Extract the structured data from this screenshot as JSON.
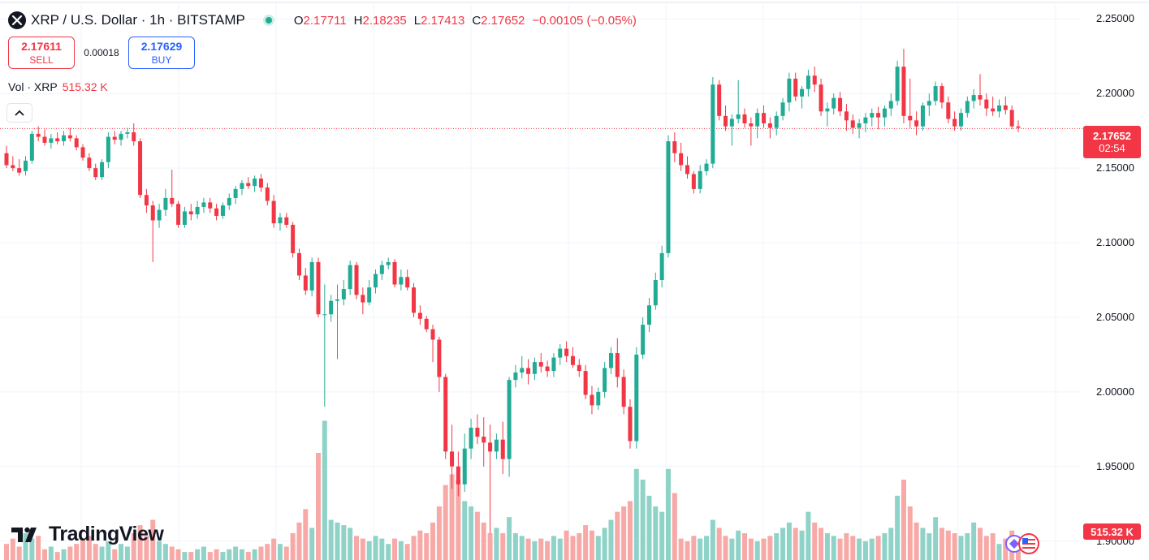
{
  "header": {
    "title": "XRP / U.S. Dollar · 1h · BITSTAMP",
    "symbol_icon": "xrp-logo-icon",
    "ohlc": [
      {
        "key": "O",
        "value": "2.17711"
      },
      {
        "key": "H",
        "value": "2.18235"
      },
      {
        "key": "L",
        "value": "2.17413"
      },
      {
        "key": "C",
        "value": "2.17652"
      }
    ],
    "change": "−0.00105 (−0.05%)"
  },
  "trade": {
    "sell_price": "2.17611",
    "sell_label": "SELL",
    "spread": "0.00018",
    "buy_price": "2.17629",
    "buy_label": "BUY"
  },
  "volume": {
    "label": "Vol · XRP",
    "value": "515.32 K"
  },
  "price_axis": {
    "labels": [
      "2.25000",
      "2.20000",
      "2.15000",
      "2.10000",
      "2.05000",
      "2.00000",
      "1.95000",
      "1.90000"
    ]
  },
  "current_price": {
    "price": "2.17652",
    "countdown": "02:54"
  },
  "volume_tag": "515.32 K",
  "logo": {
    "text": "TradingView"
  },
  "colors": {
    "up": "#22ab94",
    "down": "#f23645",
    "grid": "#f0f3fa",
    "buy": "#2962ff"
  },
  "chart_data": {
    "type": "candlestick",
    "y_range": [
      1.8873,
      2.2627
    ],
    "last_price": 2.17652,
    "candles": [
      [
        2.16,
        2.165,
        2.15,
        2.152,
        6
      ],
      [
        2.152,
        2.158,
        2.148,
        2.15,
        8
      ],
      [
        2.15,
        2.156,
        2.145,
        2.147,
        5
      ],
      [
        2.148,
        2.158,
        2.145,
        2.155,
        10
      ],
      [
        2.155,
        2.175,
        2.153,
        2.173,
        8
      ],
      [
        2.173,
        2.178,
        2.168,
        2.171,
        9
      ],
      [
        2.171,
        2.176,
        2.165,
        2.167,
        4
      ],
      [
        2.167,
        2.173,
        2.163,
        2.17,
        5
      ],
      [
        2.17,
        2.174,
        2.166,
        2.168,
        3
      ],
      [
        2.168,
        2.175,
        2.165,
        2.172,
        4
      ],
      [
        2.172,
        2.177,
        2.168,
        2.17,
        5
      ],
      [
        2.17,
        2.172,
        2.162,
        2.164,
        6
      ],
      [
        2.164,
        2.166,
        2.155,
        2.157,
        8
      ],
      [
        2.157,
        2.16,
        2.148,
        2.15,
        9
      ],
      [
        2.15,
        2.153,
        2.142,
        2.144,
        6
      ],
      [
        2.144,
        2.156,
        2.142,
        2.154,
        5
      ],
      [
        2.154,
        2.174,
        2.15,
        2.171,
        7
      ],
      [
        2.171,
        2.175,
        2.166,
        2.169,
        4
      ],
      [
        2.169,
        2.175,
        2.165,
        2.173,
        6
      ],
      [
        2.173,
        2.177,
        2.17,
        2.174,
        5
      ],
      [
        2.174,
        2.18,
        2.165,
        2.168,
        10
      ],
      [
        2.168,
        2.17,
        2.13,
        2.132,
        13
      ],
      [
        2.132,
        2.136,
        2.12,
        2.125,
        9
      ],
      [
        2.125,
        2.128,
        2.087,
        2.115,
        15
      ],
      [
        2.115,
        2.126,
        2.11,
        2.122,
        7
      ],
      [
        2.122,
        2.136,
        2.118,
        2.13,
        6
      ],
      [
        2.13,
        2.149,
        2.124,
        2.126,
        5
      ],
      [
        2.126,
        2.128,
        2.11,
        2.112,
        4
      ],
      [
        2.112,
        2.124,
        2.11,
        2.121,
        3
      ],
      [
        2.121,
        2.126,
        2.115,
        2.119,
        3
      ],
      [
        2.119,
        2.128,
        2.116,
        2.124,
        4
      ],
      [
        2.124,
        2.13,
        2.12,
        2.127,
        5
      ],
      [
        2.127,
        2.13,
        2.12,
        2.123,
        3
      ],
      [
        2.123,
        2.126,
        2.115,
        2.118,
        4
      ],
      [
        2.118,
        2.127,
        2.116,
        2.125,
        3
      ],
      [
        2.125,
        2.133,
        2.122,
        2.13,
        4
      ],
      [
        2.13,
        2.138,
        2.126,
        2.136,
        5
      ],
      [
        2.136,
        2.142,
        2.132,
        2.14,
        4
      ],
      [
        2.14,
        2.144,
        2.136,
        2.138,
        3
      ],
      [
        2.138,
        2.145,
        2.134,
        2.143,
        4
      ],
      [
        2.143,
        2.146,
        2.134,
        2.137,
        5
      ],
      [
        2.137,
        2.14,
        2.125,
        2.128,
        6
      ],
      [
        2.128,
        2.132,
        2.11,
        2.113,
        8
      ],
      [
        2.113,
        2.12,
        2.108,
        2.117,
        6
      ],
      [
        2.117,
        2.12,
        2.11,
        2.112,
        5
      ],
      [
        2.112,
        2.114,
        2.09,
        2.093,
        10
      ],
      [
        2.093,
        2.096,
        2.075,
        2.078,
        14
      ],
      [
        2.078,
        2.083,
        2.065,
        2.068,
        19
      ],
      [
        2.068,
        2.09,
        2.064,
        2.087,
        12
      ],
      [
        2.087,
        2.09,
        2.05,
        2.052,
        40
      ],
      [
        2.052,
        2.072,
        1.99,
        2.052,
        52
      ],
      [
        2.052,
        2.065,
        2.047,
        2.061,
        15
      ],
      [
        2.061,
        2.072,
        2.022,
        2.062,
        14
      ],
      [
        2.062,
        2.075,
        2.058,
        2.069,
        13
      ],
      [
        2.069,
        2.088,
        2.065,
        2.085,
        12
      ],
      [
        2.085,
        2.087,
        2.062,
        2.065,
        9
      ],
      [
        2.065,
        2.07,
        2.052,
        2.06,
        8
      ],
      [
        2.06,
        2.075,
        2.058,
        2.07,
        7
      ],
      [
        2.07,
        2.082,
        2.066,
        2.079,
        9
      ],
      [
        2.079,
        2.088,
        2.075,
        2.085,
        8
      ],
      [
        2.085,
        2.09,
        2.082,
        2.087,
        6
      ],
      [
        2.087,
        2.089,
        2.07,
        2.072,
        8
      ],
      [
        2.072,
        2.082,
        2.068,
        2.077,
        7
      ],
      [
        2.077,
        2.082,
        2.068,
        2.07,
        6
      ],
      [
        2.07,
        2.073,
        2.05,
        2.053,
        9
      ],
      [
        2.053,
        2.058,
        2.045,
        2.049,
        11
      ],
      [
        2.049,
        2.051,
        2.04,
        2.042,
        10
      ],
      [
        2.042,
        2.045,
        2.02,
        2.035,
        14
      ],
      [
        2.035,
        2.037,
        2.0,
        2.01,
        20
      ],
      [
        2.01,
        2.012,
        1.955,
        1.96,
        28
      ],
      [
        1.96,
        1.978,
        1.935,
        1.95,
        32
      ],
      [
        1.95,
        1.96,
        1.93,
        1.938,
        30
      ],
      [
        1.938,
        1.972,
        1.933,
        1.962,
        22
      ],
      [
        1.962,
        1.982,
        1.955,
        1.976,
        20
      ],
      [
        1.976,
        1.985,
        1.965,
        1.97,
        18
      ],
      [
        1.97,
        1.983,
        1.95,
        1.966,
        14
      ],
      [
        1.966,
        1.978,
        1.905,
        1.96,
        10
      ],
      [
        1.96,
        1.972,
        1.955,
        1.968,
        12
      ],
      [
        1.968,
        1.98,
        1.945,
        1.955,
        10
      ],
      [
        1.955,
        2.01,
        1.943,
        2.008,
        16
      ],
      [
        2.008,
        2.018,
        2.003,
        2.013,
        10
      ],
      [
        2.013,
        2.024,
        2.009,
        2.016,
        9
      ],
      [
        2.016,
        2.022,
        2.005,
        2.012,
        8
      ],
      [
        2.012,
        2.023,
        2.008,
        2.02,
        7
      ],
      [
        2.02,
        2.026,
        2.013,
        2.017,
        8
      ],
      [
        2.017,
        2.021,
        2.01,
        2.014,
        7
      ],
      [
        2.014,
        2.026,
        2.01,
        2.023,
        9
      ],
      [
        2.023,
        2.032,
        2.018,
        2.029,
        8
      ],
      [
        2.029,
        2.034,
        2.02,
        2.024,
        11
      ],
      [
        2.024,
        2.03,
        2.016,
        2.018,
        9
      ],
      [
        2.018,
        2.022,
        2.01,
        2.014,
        10
      ],
      [
        2.014,
        2.018,
        1.995,
        1.998,
        13
      ],
      [
        1.998,
        2.004,
        1.985,
        1.991,
        11
      ],
      [
        1.991,
        2.003,
        1.988,
        2.0,
        9
      ],
      [
        2.0,
        2.02,
        1.996,
        2.016,
        12
      ],
      [
        2.016,
        2.03,
        2.012,
        2.026,
        15
      ],
      [
        2.026,
        2.036,
        2.003,
        2.01,
        18
      ],
      [
        2.01,
        2.015,
        1.985,
        1.99,
        20
      ],
      [
        1.99,
        1.995,
        1.962,
        1.967,
        22
      ],
      [
        1.967,
        2.03,
        1.962,
        2.025,
        34
      ],
      [
        2.025,
        2.05,
        2.022,
        2.045,
        30
      ],
      [
        2.045,
        2.063,
        2.04,
        2.058,
        24
      ],
      [
        2.058,
        2.08,
        2.055,
        2.075,
        20
      ],
      [
        2.075,
        2.098,
        2.07,
        2.093,
        18
      ],
      [
        2.093,
        2.172,
        2.09,
        2.168,
        34
      ],
      [
        2.168,
        2.174,
        2.154,
        2.16,
        25
      ],
      [
        2.16,
        2.167,
        2.148,
        2.152,
        8
      ],
      [
        2.152,
        2.158,
        2.143,
        2.146,
        7
      ],
      [
        2.146,
        2.148,
        2.133,
        2.136,
        9
      ],
      [
        2.136,
        2.152,
        2.133,
        2.148,
        8
      ],
      [
        2.148,
        2.156,
        2.145,
        2.153,
        9
      ],
      [
        2.153,
        2.211,
        2.15,
        2.206,
        15
      ],
      [
        2.206,
        2.209,
        2.182,
        2.185,
        12
      ],
      [
        2.185,
        2.192,
        2.175,
        2.178,
        9
      ],
      [
        2.178,
        2.186,
        2.165,
        2.183,
        8
      ],
      [
        2.183,
        2.209,
        2.18,
        2.186,
        11
      ],
      [
        2.186,
        2.19,
        2.177,
        2.18,
        10
      ],
      [
        2.18,
        2.184,
        2.165,
        2.178,
        8
      ],
      [
        2.178,
        2.19,
        2.17,
        2.187,
        7
      ],
      [
        2.187,
        2.192,
        2.177,
        2.18,
        8
      ],
      [
        2.18,
        2.184,
        2.17,
        2.177,
        9
      ],
      [
        2.177,
        2.188,
        2.172,
        2.185,
        10
      ],
      [
        2.185,
        2.197,
        2.182,
        2.194,
        12
      ],
      [
        2.194,
        2.214,
        2.188,
        2.21,
        14
      ],
      [
        2.21,
        2.214,
        2.195,
        2.198,
        12
      ],
      [
        2.198,
        2.205,
        2.19,
        2.203,
        11
      ],
      [
        2.203,
        2.216,
        2.198,
        2.212,
        18
      ],
      [
        2.212,
        2.218,
        2.201,
        2.206,
        14
      ],
      [
        2.206,
        2.21,
        2.185,
        2.188,
        12
      ],
      [
        2.188,
        2.194,
        2.178,
        2.19,
        10
      ],
      [
        2.19,
        2.2,
        2.186,
        2.197,
        9
      ],
      [
        2.197,
        2.201,
        2.185,
        2.188,
        8
      ],
      [
        2.188,
        2.193,
        2.175,
        2.182,
        10
      ],
      [
        2.182,
        2.186,
        2.173,
        2.177,
        9
      ],
      [
        2.177,
        2.183,
        2.17,
        2.18,
        8
      ],
      [
        2.18,
        2.187,
        2.174,
        2.184,
        7
      ],
      [
        2.184,
        2.19,
        2.178,
        2.187,
        8
      ],
      [
        2.187,
        2.191,
        2.176,
        2.184,
        9
      ],
      [
        2.184,
        2.192,
        2.178,
        2.19,
        10
      ],
      [
        2.19,
        2.2,
        2.185,
        2.195,
        12
      ],
      [
        2.195,
        2.222,
        2.192,
        2.218,
        24
      ],
      [
        2.218,
        2.23,
        2.18,
        2.185,
        30
      ],
      [
        2.185,
        2.21,
        2.177,
        2.182,
        20
      ],
      [
        2.182,
        2.188,
        2.172,
        2.178,
        14
      ],
      [
        2.178,
        2.194,
        2.175,
        2.192,
        12
      ],
      [
        2.192,
        2.2,
        2.185,
        2.195,
        10
      ],
      [
        2.195,
        2.208,
        2.192,
        2.205,
        16
      ],
      [
        2.205,
        2.207,
        2.19,
        2.194,
        12
      ],
      [
        2.194,
        2.198,
        2.18,
        2.183,
        11
      ],
      [
        2.183,
        2.188,
        2.175,
        2.178,
        10
      ],
      [
        2.178,
        2.19,
        2.175,
        2.187,
        9
      ],
      [
        2.187,
        2.198,
        2.184,
        2.195,
        10
      ],
      [
        2.195,
        2.203,
        2.19,
        2.199,
        14
      ],
      [
        2.199,
        2.213,
        2.192,
        2.196,
        12
      ],
      [
        2.196,
        2.2,
        2.185,
        2.19,
        9
      ],
      [
        2.19,
        2.198,
        2.185,
        2.188,
        10
      ],
      [
        2.188,
        2.196,
        2.184,
        2.192,
        6
      ],
      [
        2.192,
        2.198,
        2.186,
        2.189,
        8
      ],
      [
        2.189,
        2.192,
        2.176,
        2.178,
        11
      ],
      [
        2.178,
        2.182,
        2.174,
        2.177,
        7
      ]
    ]
  }
}
